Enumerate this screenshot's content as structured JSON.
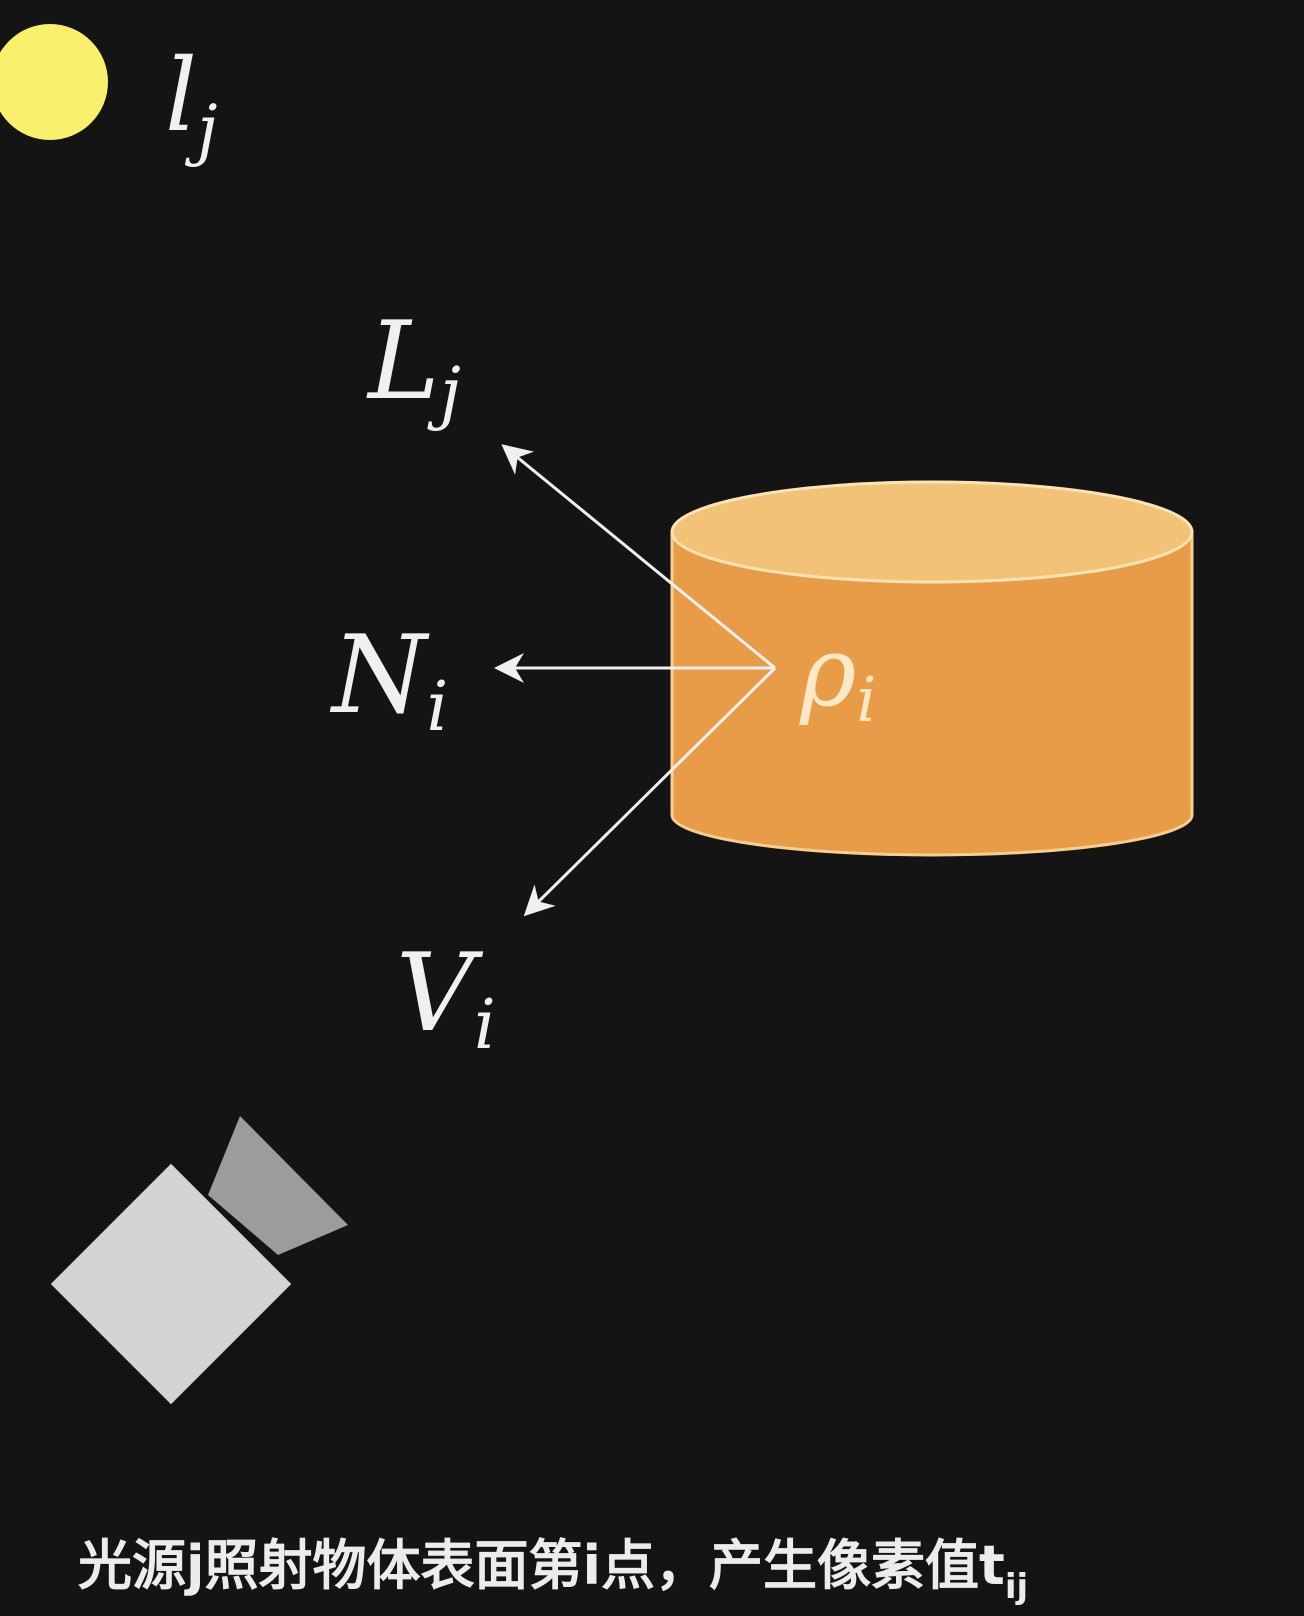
{
  "light_source": {
    "symbol": "l",
    "subscript": "j",
    "color": "#f8ef6a"
  },
  "vectors": {
    "light_direction": {
      "symbol": "L",
      "subscript": "j"
    },
    "normal": {
      "symbol": "N",
      "subscript": "i"
    },
    "view_direction": {
      "symbol": "V",
      "subscript": "i"
    }
  },
  "object": {
    "albedo_symbol": "ρ",
    "albedo_subscript": "i",
    "body_color": "#e99c48",
    "top_color": "#f2c277"
  },
  "camera": {
    "body_color": "#d4d4d4",
    "lens_color": "#9c9c9c"
  },
  "caption": {
    "text": "光源j照射物体表面第i点，产生像素值t",
    "subscript": "ij"
  },
  "colors": {
    "background": "#141414",
    "arrow": "#f0f0f0"
  }
}
